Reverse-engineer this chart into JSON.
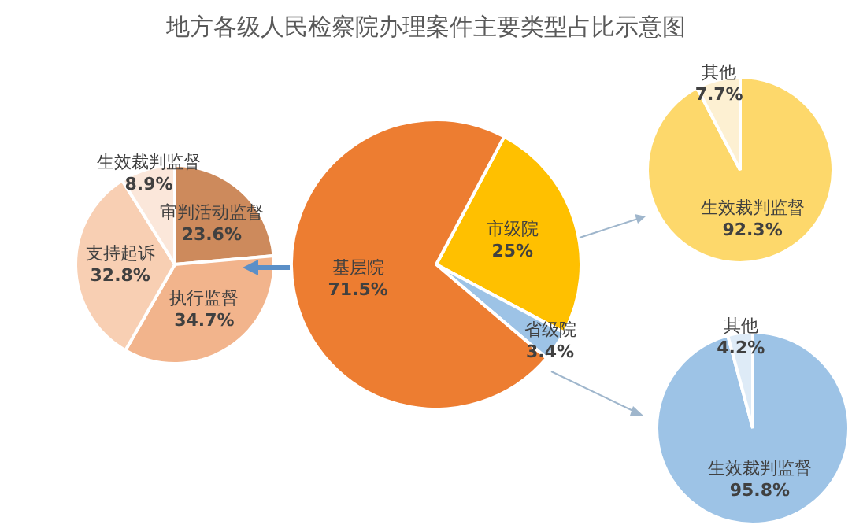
{
  "chart_data": [
    {
      "type": "pie",
      "title": "地方各级人民检察院办理案件主要类型占比示意图",
      "categories": [
        "审判活动监督",
        "执行监督",
        "支持起诉",
        "生效裁判监督"
      ],
      "values": [
        23.6,
        34.7,
        32.8,
        8.9
      ],
      "colors": [
        "#cd8a5c",
        "#f2b48c",
        "#f8cfb3",
        "#fbe7da"
      ],
      "value_labels": [
        "23.6%",
        "34.7%",
        "32.8%",
        "8.9%"
      ]
    },
    {
      "type": "pie",
      "categories": [
        "市级院",
        "省级院",
        "基层院"
      ],
      "values": [
        25,
        3.4,
        71.5
      ],
      "colors": [
        "#ffc000",
        "#9dc3e6",
        "#ed7d31"
      ],
      "value_labels": [
        "25%",
        "3.4%",
        "71.5%"
      ]
    },
    {
      "type": "pie",
      "categories": [
        "生效裁判监督",
        "其他"
      ],
      "values": [
        92.3,
        7.7
      ],
      "colors": [
        "#fdd86b",
        "#fdf0d2"
      ],
      "value_labels": [
        "92.3%",
        "7.7%"
      ]
    },
    {
      "type": "pie",
      "categories": [
        "生效裁判监督",
        "其他"
      ],
      "values": [
        95.8,
        4.2
      ],
      "colors": [
        "#9dc3e6",
        "#deebf7"
      ],
      "value_labels": [
        "95.8%",
        "4.2%"
      ]
    }
  ]
}
